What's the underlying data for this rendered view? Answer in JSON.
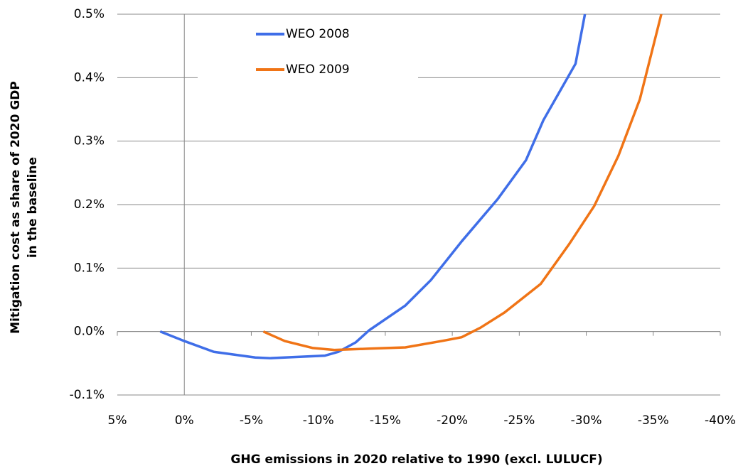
{
  "chart_data": {
    "type": "line",
    "x_label": "GHG emissions in 2020 relative to 1990 (excl. LULUCF)",
    "y_label": [
      "Mitigation cost as share of 2020 GDP",
      "in the  baseline"
    ],
    "series": [
      {
        "name": "WEO 2008",
        "color": "#3f6ee8",
        "x": [
          1.8,
          0,
          -2.2,
          -5.3,
          -6.4,
          -10.5,
          -11.5,
          -12.8,
          -13.8,
          -16.5,
          -18.4,
          -20.7,
          -23.4,
          -25.5,
          -26.8,
          -29.2,
          -29.9
        ],
        "values": [
          0,
          -0.015,
          -0.032,
          -0.041,
          -0.042,
          -0.038,
          -0.032,
          -0.017,
          0.002,
          0.041,
          0.081,
          0.142,
          0.209,
          0.27,
          0.333,
          0.422,
          0.5
        ]
      },
      {
        "name": "WEO 2009",
        "color": "#f07416",
        "x": [
          -5.9,
          -7.5,
          -9.6,
          -11.2,
          -13.8,
          -16.5,
          -19.2,
          -20.7,
          -22.1,
          -23.9,
          -26.6,
          -28.7,
          -30.6,
          -32.4,
          -34.0,
          -35.6
        ],
        "values": [
          0,
          -0.015,
          -0.026,
          -0.029,
          -0.027,
          -0.025,
          -0.015,
          -0.009,
          0.006,
          0.03,
          0.075,
          0.137,
          0.198,
          0.277,
          0.366,
          0.5
        ]
      }
    ],
    "xlim": [
      5,
      -40
    ],
    "xticks": [
      {
        "value": 5,
        "label": "5%"
      },
      {
        "value": 0,
        "label": "0%"
      },
      {
        "value": -5,
        "label": "-5%"
      },
      {
        "value": -10,
        "label": "-10%"
      },
      {
        "value": -15,
        "label": "-15%"
      },
      {
        "value": -20,
        "label": "-20%"
      },
      {
        "value": -25,
        "label": "-25%"
      },
      {
        "value": -30,
        "label": "-30%"
      },
      {
        "value": -35,
        "label": "-35%"
      },
      {
        "value": -40,
        "label": "-40%"
      }
    ],
    "ylim": [
      -0.1,
      0.5
    ],
    "yticks": [
      {
        "value": -0.1,
        "label": "-0.1%"
      },
      {
        "value": 0,
        "label": "0.0%"
      },
      {
        "value": 0.1,
        "label": "0.1%"
      },
      {
        "value": 0.2,
        "label": "0.2%"
      },
      {
        "value": 0.3,
        "label": "0.3%"
      },
      {
        "value": 0.4,
        "label": "0.4%"
      },
      {
        "value": 0.5,
        "label": "0.5%"
      }
    ],
    "grid": true,
    "legend": "top-left"
  }
}
